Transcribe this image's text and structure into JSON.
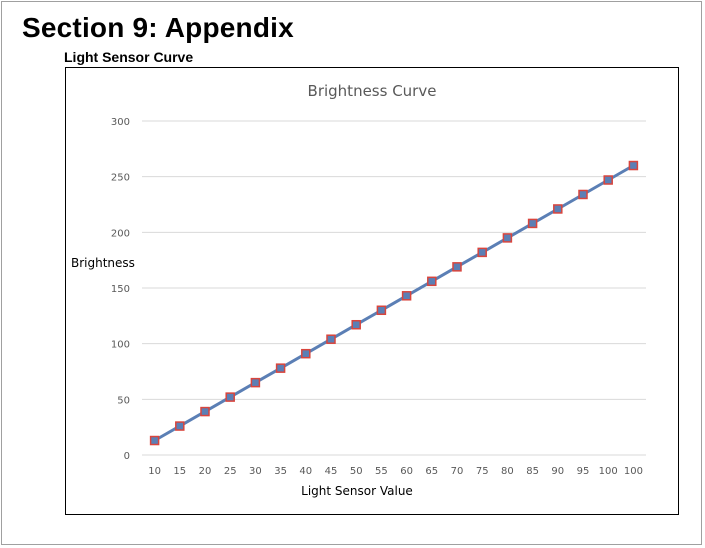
{
  "page": {
    "section_title": "Section 9: Appendix",
    "subtitle": "Light Sensor Curve"
  },
  "chart_data": {
    "type": "line",
    "title": "Brightness Curve",
    "xlabel": "Light Sensor Value",
    "ylabel": "Brightness",
    "ylim": [
      0,
      300
    ],
    "yticks": [
      0,
      50,
      100,
      150,
      200,
      250,
      300
    ],
    "categories": [
      "10",
      "15",
      "20",
      "25",
      "30",
      "35",
      "40",
      "45",
      "50",
      "55",
      "60",
      "65",
      "70",
      "75",
      "80",
      "85",
      "90",
      "95",
      "100",
      "100"
    ],
    "series": [
      {
        "name": "Brightness",
        "values": [
          13,
          26,
          39,
          52,
          65,
          78,
          91,
          104,
          117,
          130,
          143,
          156,
          169,
          182,
          195,
          208,
          221,
          234,
          247,
          260
        ]
      }
    ],
    "grid": true,
    "colors": {
      "line": "#5b7fb5",
      "marker_fill": "#5b7fb5",
      "marker_border": "#d9453d",
      "grid": "#d9d9d9",
      "axis_text": "#595959"
    }
  }
}
